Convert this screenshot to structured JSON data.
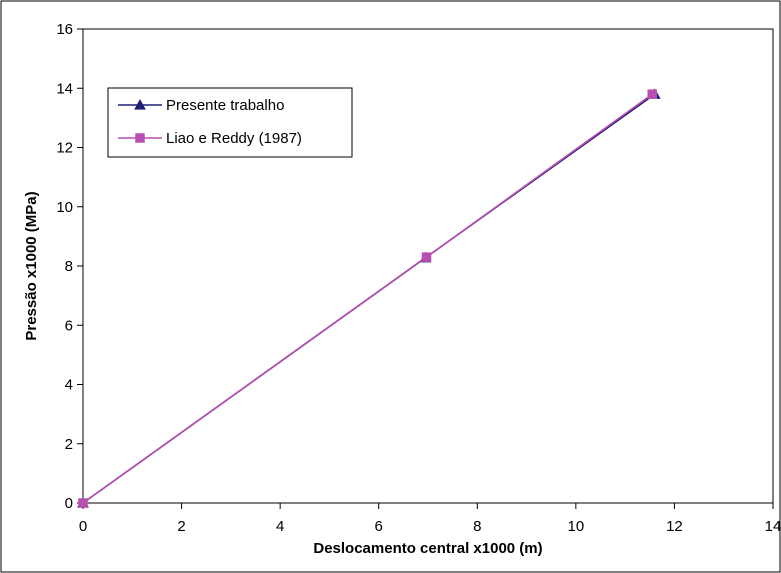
{
  "chart_data": {
    "type": "line",
    "title": "",
    "xlabel": "Deslocamento central x1000 (m)",
    "ylabel": "Pressão x1000 (MPa)",
    "xlim": [
      0,
      14
    ],
    "ylim": [
      0,
      16
    ],
    "xticks": [
      "0",
      "2",
      "4",
      "6",
      "8",
      "10",
      "12",
      "14"
    ],
    "yticks": [
      "0",
      "2",
      "4",
      "6",
      "8",
      "10",
      "12",
      "14",
      "16"
    ],
    "grid": false,
    "legend_position": "top-left",
    "series": [
      {
        "name": "Presente trabalho",
        "marker": "triangle",
        "color": "#1f1f7a",
        "points": [
          [
            0,
            0
          ],
          [
            6.95,
            8.28
          ],
          [
            11.6,
            13.8
          ]
        ]
      },
      {
        "name": "Liao e Reddy (1987)",
        "marker": "square",
        "color": "#b84fb0",
        "points": [
          [
            0,
            0
          ],
          [
            6.97,
            8.3
          ],
          [
            11.55,
            13.8
          ]
        ]
      }
    ]
  }
}
